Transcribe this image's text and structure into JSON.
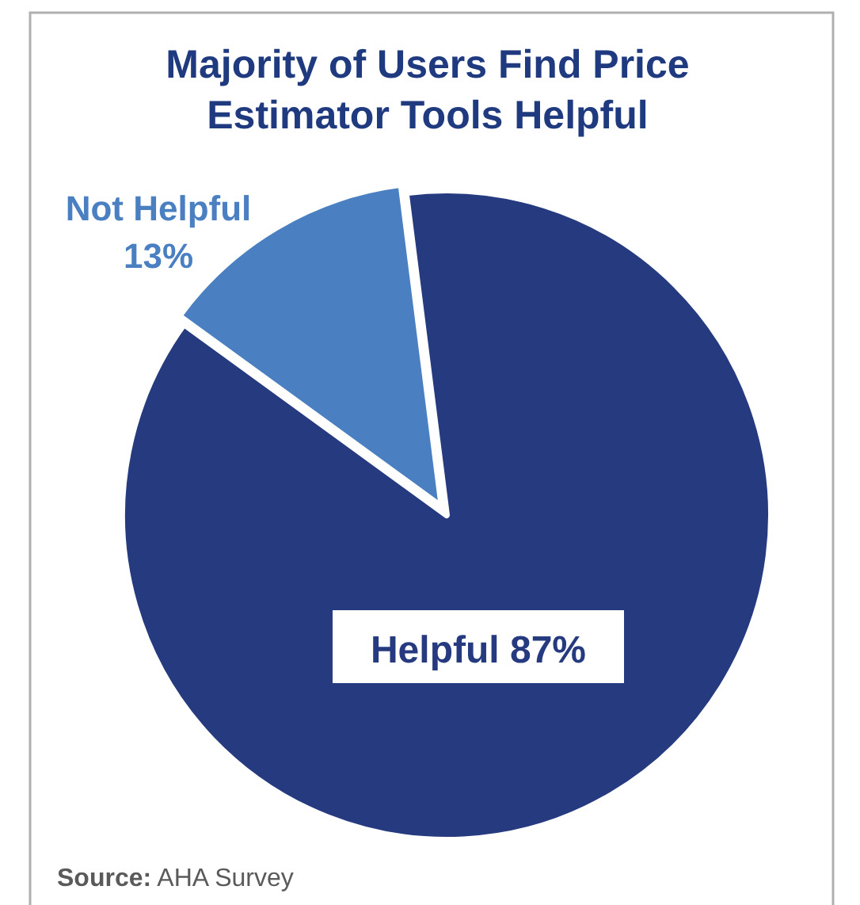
{
  "chart_data": {
    "type": "pie",
    "title": "Majority of Users Find Price Estimator Tools Helpful",
    "categories": [
      "Not Helpful",
      "Helpful"
    ],
    "values": [
      13,
      87
    ],
    "colors": [
      "#4a7fc1",
      "#253a7f"
    ],
    "value_labels": [
      "13%",
      "87%"
    ],
    "annotations": [
      "Source: AHA Survey"
    ]
  }
}
